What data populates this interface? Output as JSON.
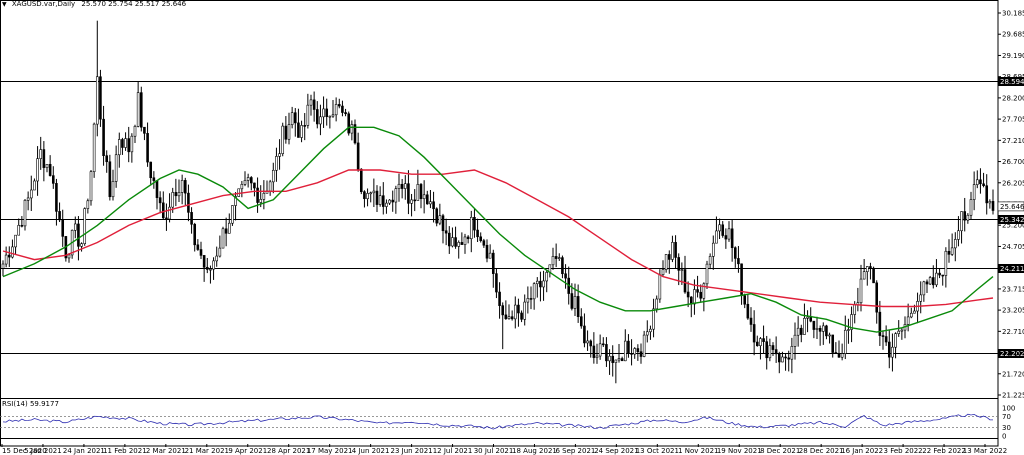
{
  "header": {
    "symbol": "XAGUSD.var,Daily",
    "ohlc": "25.570 25.754 25.517 25.646"
  },
  "rsi": {
    "label": "RSI(14) 59.9177",
    "levels": [
      70,
      30
    ],
    "ticks": [
      "100",
      "70",
      "30",
      "0"
    ],
    "color": "#2b2bb0"
  },
  "colors": {
    "bull": "#000000",
    "bear": "#000000",
    "ma_fast": "#0a8a0a",
    "ma_slow": "#e0203a",
    "hline": "#000000"
  },
  "chart_data": {
    "type": "candlestick",
    "title": "",
    "ylim": [
      21.225,
      30.18
    ],
    "y_ticks": [
      "30.185",
      "29.685",
      "29.190",
      "28.695",
      "28.200",
      "27.705",
      "27.210",
      "26.700",
      "26.205",
      "25.710",
      "25.200",
      "24.705",
      "24.210",
      "23.715",
      "23.205",
      "22.710",
      "22.215",
      "21.720",
      "21.225"
    ],
    "x_ticks": [
      "15 Dec 2020",
      "5 Jan 2021",
      "24 Jan 2021",
      "11 Feb 2021",
      "2 Mar 2021",
      "21 Mar 2021",
      "9 Apr 2021",
      "28 Apr 2021",
      "17 May 2021",
      "4 Jun 2021",
      "23 Jun 2021",
      "12 Jul 2021",
      "30 Jul 2021",
      "18 Aug 2021",
      "6 Sep 2021",
      "24 Sep 2021",
      "13 Oct 2021",
      "1 Nov 2021",
      "19 Nov 2021",
      "8 Dec 2021",
      "28 Dec 2021",
      "16 Jan 2022",
      "3 Feb 2022",
      "22 Feb 2022",
      "13 Mar 2022"
    ],
    "price_levels": [
      {
        "value": 28.594,
        "label": "28.594"
      },
      {
        "value": 25.342,
        "label": "25.342"
      },
      {
        "value": 24.211,
        "label": "24.211"
      },
      {
        "value": 22.202,
        "label": "22.202"
      }
    ],
    "current_price": {
      "value": 25.646,
      "label": "25.646"
    },
    "close_path": [
      [
        0,
        24.3
      ],
      [
        4,
        25.0
      ],
      [
        8,
        25.8
      ],
      [
        12,
        26.9
      ],
      [
        15,
        26.5
      ],
      [
        18,
        25.3
      ],
      [
        20,
        24.6
      ],
      [
        23,
        25.0
      ],
      [
        25,
        24.8
      ],
      [
        28,
        26.5
      ],
      [
        30,
        28.6
      ],
      [
        32,
        27.0
      ],
      [
        34,
        25.9
      ],
      [
        37,
        27.3
      ],
      [
        40,
        27.0
      ],
      [
        43,
        28.1
      ],
      [
        46,
        26.7
      ],
      [
        48,
        26.2
      ],
      [
        51,
        25.3
      ],
      [
        54,
        26.0
      ],
      [
        57,
        26.3
      ],
      [
        60,
        25.0
      ],
      [
        63,
        24.5
      ],
      [
        65,
        24.0
      ],
      [
        68,
        24.6
      ],
      [
        71,
        25.2
      ],
      [
        74,
        25.7
      ],
      [
        78,
        26.2
      ],
      [
        82,
        25.9
      ],
      [
        86,
        26.4
      ],
      [
        89,
        27.3
      ],
      [
        92,
        27.8
      ],
      [
        95,
        27.3
      ],
      [
        98,
        28.1
      ],
      [
        101,
        27.6
      ],
      [
        104,
        28.0
      ],
      [
        107,
        27.9
      ],
      [
        110,
        27.5
      ],
      [
        112,
        27.3
      ],
      [
        114,
        26.2
      ],
      [
        117,
        25.8
      ],
      [
        120,
        25.9
      ],
      [
        123,
        25.8
      ],
      [
        126,
        26.3
      ],
      [
        129,
        25.9
      ],
      [
        132,
        26.1
      ],
      [
        135,
        25.9
      ],
      [
        138,
        25.5
      ],
      [
        141,
        24.9
      ],
      [
        144,
        24.6
      ],
      [
        147,
        25.0
      ],
      [
        150,
        25.3
      ],
      [
        152,
        25.0
      ],
      [
        155,
        24.5
      ],
      [
        157,
        23.7
      ],
      [
        159,
        22.9
      ],
      [
        162,
        23.2
      ],
      [
        165,
        23.0
      ],
      [
        167,
        23.4
      ],
      [
        170,
        23.7
      ],
      [
        173,
        24.0
      ],
      [
        176,
        24.4
      ],
      [
        179,
        23.8
      ],
      [
        182,
        23.3
      ],
      [
        185,
        22.5
      ],
      [
        188,
        22.1
      ],
      [
        191,
        22.3
      ],
      [
        193,
        22.2
      ],
      [
        195,
        21.8
      ],
      [
        198,
        22.4
      ],
      [
        201,
        22.3
      ],
      [
        204,
        22.4
      ],
      [
        207,
        23.3
      ],
      [
        210,
        24.3
      ],
      [
        213,
        24.6
      ],
      [
        216,
        24.0
      ],
      [
        219,
        23.4
      ],
      [
        222,
        23.7
      ],
      [
        225,
        24.6
      ],
      [
        228,
        25.3
      ],
      [
        231,
        25.0
      ],
      [
        234,
        24.1
      ],
      [
        236,
        23.4
      ],
      [
        239,
        22.7
      ],
      [
        242,
        22.3
      ],
      [
        245,
        22.4
      ],
      [
        248,
        22.0
      ],
      [
        251,
        22.3
      ],
      [
        254,
        22.7
      ],
      [
        257,
        23.0
      ],
      [
        260,
        22.9
      ],
      [
        263,
        22.4
      ],
      [
        266,
        22.2
      ],
      [
        269,
        22.7
      ],
      [
        272,
        23.5
      ],
      [
        274,
        24.3
      ],
      [
        277,
        23.8
      ],
      [
        279,
        22.7
      ],
      [
        282,
        22.3
      ],
      [
        285,
        22.6
      ],
      [
        288,
        23.0
      ],
      [
        291,
        23.6
      ],
      [
        294,
        23.7
      ],
      [
        297,
        23.9
      ],
      [
        300,
        24.4
      ],
      [
        303,
        25.0
      ],
      [
        305,
        25.6
      ],
      [
        307,
        25.2
      ],
      [
        309,
        26.1
      ],
      [
        311,
        26.4
      ],
      [
        313,
        25.9
      ],
      [
        315,
        25.646
      ]
    ],
    "ma_fast_path": [
      [
        0,
        24.0
      ],
      [
        10,
        24.3
      ],
      [
        20,
        24.7
      ],
      [
        30,
        25.2
      ],
      [
        40,
        25.8
      ],
      [
        50,
        26.3
      ],
      [
        56,
        26.5
      ],
      [
        62,
        26.4
      ],
      [
        70,
        26.1
      ],
      [
        78,
        25.6
      ],
      [
        86,
        25.8
      ],
      [
        94,
        26.4
      ],
      [
        102,
        27.0
      ],
      [
        110,
        27.5
      ],
      [
        118,
        27.5
      ],
      [
        126,
        27.3
      ],
      [
        134,
        26.8
      ],
      [
        142,
        26.2
      ],
      [
        150,
        25.6
      ],
      [
        158,
        25.0
      ],
      [
        166,
        24.5
      ],
      [
        174,
        24.1
      ],
      [
        182,
        23.7
      ],
      [
        190,
        23.4
      ],
      [
        198,
        23.2
      ],
      [
        206,
        23.2
      ],
      [
        214,
        23.3
      ],
      [
        222,
        23.4
      ],
      [
        230,
        23.5
      ],
      [
        238,
        23.6
      ],
      [
        246,
        23.4
      ],
      [
        254,
        23.1
      ],
      [
        262,
        23.0
      ],
      [
        270,
        22.8
      ],
      [
        278,
        22.7
      ],
      [
        286,
        22.8
      ],
      [
        294,
        23.0
      ],
      [
        302,
        23.2
      ],
      [
        310,
        23.7
      ],
      [
        315,
        24.0
      ]
    ],
    "ma_slow_path": [
      [
        0,
        24.6
      ],
      [
        10,
        24.4
      ],
      [
        20,
        24.5
      ],
      [
        30,
        24.8
      ],
      [
        40,
        25.2
      ],
      [
        50,
        25.5
      ],
      [
        60,
        25.7
      ],
      [
        70,
        25.9
      ],
      [
        80,
        26.0
      ],
      [
        90,
        26.0
      ],
      [
        100,
        26.2
      ],
      [
        110,
        26.5
      ],
      [
        120,
        26.5
      ],
      [
        130,
        26.4
      ],
      [
        140,
        26.4
      ],
      [
        150,
        26.5
      ],
      [
        160,
        26.2
      ],
      [
        170,
        25.8
      ],
      [
        180,
        25.4
      ],
      [
        190,
        24.9
      ],
      [
        200,
        24.4
      ],
      [
        210,
        24.0
      ],
      [
        220,
        23.8
      ],
      [
        230,
        23.7
      ],
      [
        240,
        23.6
      ],
      [
        250,
        23.5
      ],
      [
        260,
        23.4
      ],
      [
        270,
        23.35
      ],
      [
        280,
        23.3
      ],
      [
        290,
        23.3
      ],
      [
        300,
        23.35
      ],
      [
        310,
        23.45
      ],
      [
        315,
        23.5
      ]
    ],
    "rsi_path": [
      [
        0,
        52
      ],
      [
        10,
        58
      ],
      [
        20,
        50
      ],
      [
        30,
        70
      ],
      [
        40,
        62
      ],
      [
        50,
        45
      ],
      [
        60,
        40
      ],
      [
        70,
        48
      ],
      [
        80,
        55
      ],
      [
        90,
        62
      ],
      [
        100,
        68
      ],
      [
        110,
        58
      ],
      [
        120,
        45
      ],
      [
        130,
        52
      ],
      [
        140,
        40
      ],
      [
        150,
        35
      ],
      [
        156,
        28
      ],
      [
        162,
        38
      ],
      [
        170,
        45
      ],
      [
        180,
        38
      ],
      [
        190,
        30
      ],
      [
        198,
        42
      ],
      [
        208,
        58
      ],
      [
        216,
        50
      ],
      [
        224,
        66
      ],
      [
        232,
        45
      ],
      [
        240,
        32
      ],
      [
        250,
        38
      ],
      [
        260,
        48
      ],
      [
        268,
        35
      ],
      [
        274,
        72
      ],
      [
        280,
        38
      ],
      [
        290,
        52
      ],
      [
        300,
        62
      ],
      [
        305,
        74
      ],
      [
        310,
        72
      ],
      [
        315,
        60
      ]
    ]
  }
}
